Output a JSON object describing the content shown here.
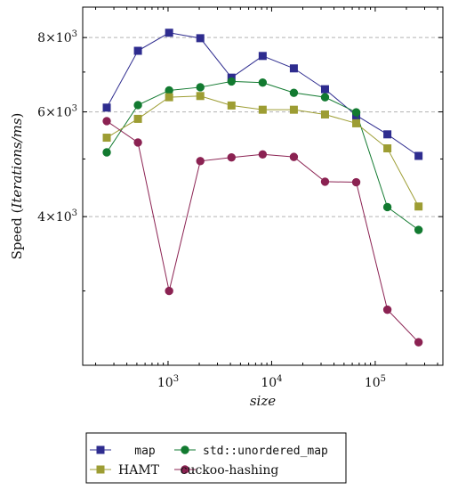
{
  "chart_data": {
    "type": "line",
    "xscale": "log",
    "yscale": "log",
    "xlabel": "size",
    "ylabel": "Speed (Iterations/ms)",
    "xlim": [
      150,
      450000
    ],
    "ylim": [
      2250,
      9000
    ],
    "grid": "y-major-dashed",
    "legend_position": "bottom-outside",
    "x_ticks": [
      {
        "value": 1000,
        "base": "10",
        "exp": "3"
      },
      {
        "value": 10000,
        "base": "10",
        "exp": "4"
      },
      {
        "value": 100000,
        "base": "10",
        "exp": "5"
      }
    ],
    "y_ticks": [
      {
        "value": 4000,
        "mant": "4",
        "times": "×",
        "base": "10",
        "exp": "3"
      },
      {
        "value": 6000,
        "mant": "6",
        "times": "×",
        "base": "10",
        "exp": "3"
      },
      {
        "value": 8000,
        "mant": "8",
        "times": "×",
        "base": "10",
        "exp": "3"
      }
    ],
    "x": [
      256,
      512,
      1024,
      2048,
      4096,
      8192,
      16384,
      32768,
      65536,
      131072,
      262144
    ],
    "series": [
      {
        "name": "map",
        "color": "#2e2c8f",
        "marker": "square",
        "values": [
          6100,
          7600,
          8150,
          7980,
          6850,
          7450,
          7100,
          6550,
          5920,
          5500,
          5060
        ]
      },
      {
        "name": "std::unordered_map",
        "color": "#127a30",
        "marker": "circle",
        "values": [
          5130,
          6160,
          6520,
          6600,
          6750,
          6720,
          6460,
          6350,
          5990,
          4150,
          3800
        ]
      },
      {
        "name": "HAMT",
        "color": "#9d9d33",
        "marker": "square",
        "values": [
          5430,
          5840,
          6350,
          6380,
          6150,
          6050,
          6050,
          5940,
          5740,
          5210,
          4160
        ]
      },
      {
        "name": "cuckoo-hashing",
        "color": "#8b2252",
        "marker": "circle",
        "values": [
          5790,
          5330,
          3000,
          4960,
          5030,
          5090,
          5040,
          4580,
          4570,
          2790,
          2460
        ]
      }
    ]
  }
}
